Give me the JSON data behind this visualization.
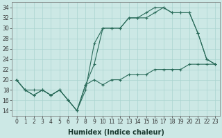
{
  "xlabel": "Humidex (Indice chaleur)",
  "bg_color": "#cce8e5",
  "line_color": "#2a6b5a",
  "grid_color": "#aad4d0",
  "xlim": [
    -0.5,
    23.5
  ],
  "ylim": [
    13,
    35
  ],
  "yticks": [
    14,
    16,
    18,
    20,
    22,
    24,
    26,
    28,
    30,
    32,
    34
  ],
  "xticks": [
    0,
    1,
    2,
    3,
    4,
    5,
    6,
    7,
    8,
    9,
    10,
    11,
    12,
    13,
    14,
    15,
    16,
    17,
    18,
    19,
    20,
    21,
    22,
    23
  ],
  "line1_x": [
    0,
    1,
    2,
    3,
    4,
    5,
    6,
    7,
    8,
    9,
    10,
    11,
    12,
    13,
    14,
    15,
    16,
    17,
    18,
    19,
    20,
    21,
    22,
    23
  ],
  "line1_y": [
    20,
    18,
    18,
    18,
    17,
    18,
    16,
    14,
    18,
    27,
    30,
    30,
    30,
    32,
    32,
    33,
    34,
    34,
    33,
    33,
    33,
    29,
    24,
    23
  ],
  "line2_x": [
    0,
    1,
    2,
    3,
    4,
    5,
    6,
    7,
    8,
    9,
    10,
    11,
    12,
    13,
    14,
    15,
    16,
    17,
    18,
    19,
    20,
    21,
    22,
    23
  ],
  "line2_y": [
    20,
    18,
    17,
    18,
    17,
    18,
    16,
    14,
    19,
    23,
    30,
    30,
    30,
    32,
    32,
    32,
    33,
    34,
    33,
    33,
    33,
    29,
    24,
    23
  ],
  "line3_x": [
    0,
    1,
    2,
    3,
    4,
    5,
    6,
    7,
    8,
    9,
    10,
    11,
    12,
    13,
    14,
    15,
    16,
    17,
    18,
    19,
    20,
    21,
    22,
    23
  ],
  "line3_y": [
    20,
    18,
    17,
    18,
    17,
    18,
    16,
    14,
    19,
    20,
    19,
    20,
    20,
    21,
    21,
    21,
    22,
    22,
    22,
    22,
    23,
    23,
    23,
    23
  ],
  "tick_fontsize": 5.5,
  "xlabel_fontsize": 7
}
